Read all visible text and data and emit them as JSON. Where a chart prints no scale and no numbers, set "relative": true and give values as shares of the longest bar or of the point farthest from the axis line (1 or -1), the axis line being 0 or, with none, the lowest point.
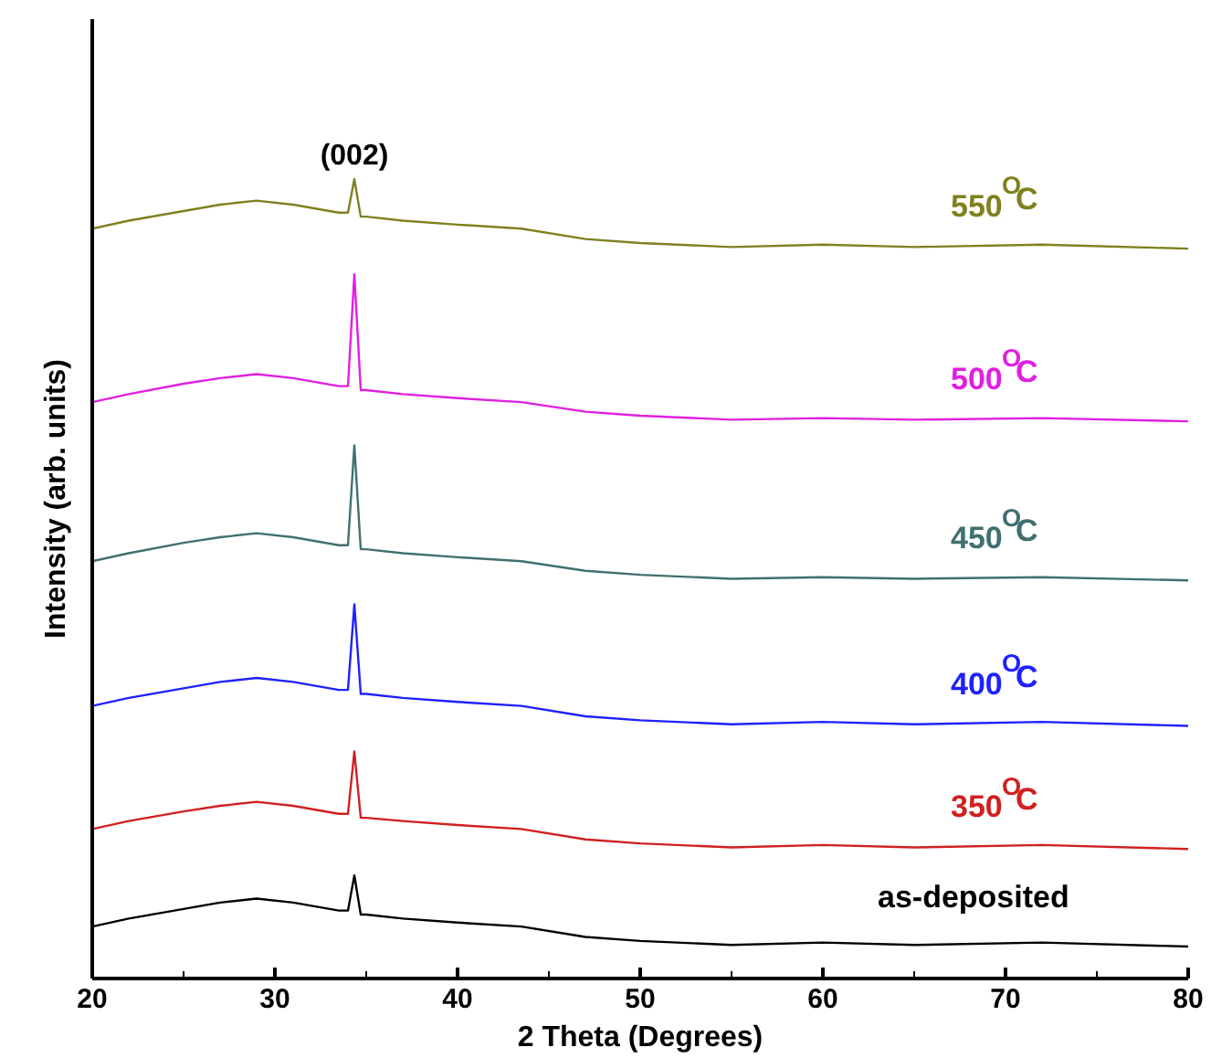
{
  "chart_data": {
    "type": "line",
    "relative": true,
    "xlabel": "2 Theta (Degrees)",
    "ylabel": "Intensity (arb. units)",
    "xlim": [
      20,
      80
    ],
    "xticks": [
      20,
      30,
      40,
      50,
      60,
      70,
      80
    ],
    "grid": false,
    "tick_labels": "x",
    "marker": "none",
    "line_style": "solid",
    "x": [
      20,
      22,
      25,
      27,
      29,
      31,
      33.5,
      34.0,
      34.35,
      34.7,
      35,
      37,
      40,
      43.5,
      47,
      50,
      55,
      60,
      65,
      72,
      80
    ],
    "annotations": [
      {
        "text": "(002)",
        "x": 34.35,
        "y": 1.0
      }
    ],
    "series": [
      {
        "name": "550$^{O}$C",
        "color": "#808020",
        "values": [
          0.938,
          0.948,
          0.96,
          0.968,
          0.973,
          0.968,
          0.958,
          0.958,
          1.0,
          0.953,
          0.953,
          0.948,
          0.943,
          0.938,
          0.925,
          0.92,
          0.915,
          0.918,
          0.915,
          0.918,
          0.913
        ]
      },
      {
        "name": "500$^{O}$C",
        "color": "#e020e0",
        "values": [
          0.721,
          0.731,
          0.744,
          0.751,
          0.756,
          0.751,
          0.741,
          0.741,
          0.881,
          0.736,
          0.736,
          0.731,
          0.726,
          0.721,
          0.709,
          0.704,
          0.699,
          0.701,
          0.699,
          0.701,
          0.697
        ]
      },
      {
        "name": "450$^{O}$C",
        "color": "#407070",
        "values": [
          0.522,
          0.532,
          0.545,
          0.552,
          0.557,
          0.552,
          0.542,
          0.542,
          0.667,
          0.537,
          0.537,
          0.532,
          0.527,
          0.522,
          0.51,
          0.505,
          0.5,
          0.502,
          0.5,
          0.502,
          0.498
        ]
      },
      {
        "name": "400$^{O}$C",
        "color": "#2020ff",
        "values": [
          0.341,
          0.351,
          0.363,
          0.371,
          0.376,
          0.371,
          0.361,
          0.361,
          0.468,
          0.356,
          0.356,
          0.351,
          0.346,
          0.341,
          0.328,
          0.323,
          0.318,
          0.321,
          0.318,
          0.321,
          0.316
        ]
      },
      {
        "name": "350$^{O}$C",
        "color": "#d02020",
        "values": [
          0.187,
          0.197,
          0.209,
          0.216,
          0.221,
          0.216,
          0.206,
          0.206,
          0.284,
          0.201,
          0.201,
          0.197,
          0.192,
          0.187,
          0.174,
          0.169,
          0.164,
          0.167,
          0.164,
          0.167,
          0.162
        ]
      },
      {
        "name": "as-deposited",
        "color": "#000000",
        "values": [
          0.065,
          0.075,
          0.087,
          0.095,
          0.1,
          0.095,
          0.085,
          0.085,
          0.129,
          0.08,
          0.08,
          0.075,
          0.07,
          0.065,
          0.052,
          0.047,
          0.042,
          0.045,
          0.042,
          0.045,
          0.04
        ]
      }
    ]
  }
}
